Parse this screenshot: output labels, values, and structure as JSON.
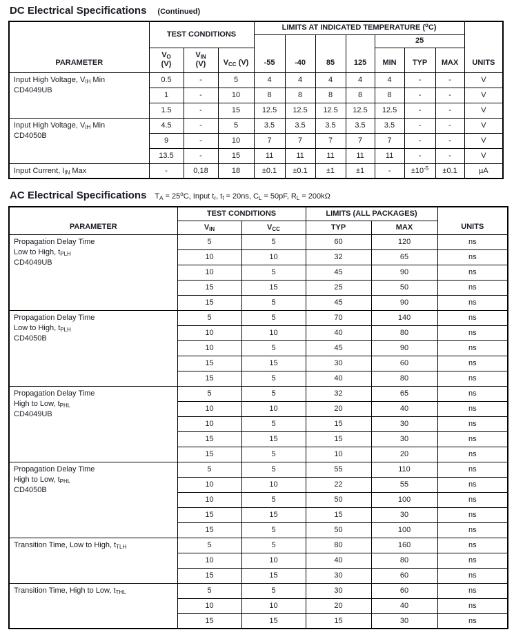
{
  "dc": {
    "title": "DC Electrical Specifications",
    "continued": "(Continued)",
    "header": {
      "parameter": "PARAMETER",
      "test_conditions": "TEST CONDITIONS",
      "limits": "LIMITS AT INDICATED TEMPERATURE (^o^C)",
      "temp25": "25",
      "vo": "V~O~\n(V)",
      "vin": "V~IN~\n(V)",
      "vcc": "V~CC~ (V)",
      "temps": [
        "-55",
        "-40",
        "85",
        "125"
      ],
      "min": "MIN",
      "typ": "TYP",
      "max": "MAX",
      "units": "UNITS"
    },
    "groups": [
      {
        "param": [
          "Input High Voltage, V~IH~ Min",
          "CD4049UB"
        ],
        "rows": [
          [
            "0.5",
            "-",
            "5",
            "4",
            "4",
            "4",
            "4",
            "4",
            "-",
            "-",
            "V"
          ],
          [
            "1",
            "-",
            "10",
            "8",
            "8",
            "8",
            "8",
            "8",
            "-",
            "-",
            "V"
          ],
          [
            "1.5",
            "-",
            "15",
            "12.5",
            "12.5",
            "12.5",
            "12.5",
            "12.5",
            "-",
            "-",
            "V"
          ]
        ]
      },
      {
        "param": [
          "Input High Voltage, V~IH~ Min",
          "CD4050B"
        ],
        "rows": [
          [
            "4.5",
            "-",
            "5",
            "3.5",
            "3.5",
            "3.5",
            "3.5",
            "3.5",
            "-",
            "-",
            "V"
          ],
          [
            "9",
            "-",
            "10",
            "7",
            "7",
            "7",
            "7",
            "7",
            "-",
            "-",
            "V"
          ],
          [
            "13.5",
            "-",
            "15",
            "11",
            "11",
            "11",
            "11",
            "11",
            "-",
            "-",
            "V"
          ]
        ]
      },
      {
        "param": [
          "Input Current, I~IN~ Max"
        ],
        "rows": [
          [
            "-",
            "0,18",
            "18",
            "±0.1",
            "±0.1",
            "±1",
            "±1",
            "-",
            "±10^-5^",
            "±0.1",
            "µA"
          ]
        ]
      }
    ]
  },
  "ac": {
    "title": "AC Electrical Specifications",
    "conditions": "T~A~ = 25^o^C, Input t~r~, t~f~ = 20ns, C~L~ = 50pF, R~L~ = 200kΩ",
    "header": {
      "parameter": "PARAMETER",
      "test_conditions": "TEST CONDITIONS",
      "limits": "LIMITS (ALL PACKAGES)",
      "vin": "V~IN~",
      "vcc": "V~CC~",
      "typ": "TYP",
      "max": "MAX",
      "units": "UNITS"
    },
    "groups": [
      {
        "param": [
          "Propagation Delay Time",
          "Low to High, t~PLH~",
          "CD4049UB"
        ],
        "rows": [
          [
            "5",
            "5",
            "60",
            "120",
            "ns"
          ],
          [
            "10",
            "10",
            "32",
            "65",
            "ns"
          ],
          [
            "10",
            "5",
            "45",
            "90",
            "ns"
          ],
          [
            "15",
            "15",
            "25",
            "50",
            "ns"
          ],
          [
            "15",
            "5",
            "45",
            "90",
            "ns"
          ]
        ]
      },
      {
        "param": [
          "Propagation Delay Time",
          "Low to High, t~PLH~",
          "CD4050B"
        ],
        "rows": [
          [
            "5",
            "5",
            "70",
            "140",
            "ns"
          ],
          [
            "10",
            "10",
            "40",
            "80",
            "ns"
          ],
          [
            "10",
            "5",
            "45",
            "90",
            "ns"
          ],
          [
            "15",
            "15",
            "30",
            "60",
            "ns"
          ],
          [
            "15",
            "5",
            "40",
            "80",
            "ns"
          ]
        ]
      },
      {
        "param": [
          "Propagation Delay Time",
          "High to Low, t~PHL~",
          "CD4049UB"
        ],
        "rows": [
          [
            "5",
            "5",
            "32",
            "65",
            "ns"
          ],
          [
            "10",
            "10",
            "20",
            "40",
            "ns"
          ],
          [
            "10",
            "5",
            "15",
            "30",
            "ns"
          ],
          [
            "15",
            "15",
            "15",
            "30",
            "ns"
          ],
          [
            "15",
            "5",
            "10",
            "20",
            "ns"
          ]
        ]
      },
      {
        "param": [
          "Propagation Delay Time",
          "High to Low, t~PHL~",
          "CD4050B"
        ],
        "rows": [
          [
            "5",
            "5",
            "55",
            "110",
            "ns"
          ],
          [
            "10",
            "10",
            "22",
            "55",
            "ns"
          ],
          [
            "10",
            "5",
            "50",
            "100",
            "ns"
          ],
          [
            "15",
            "15",
            "15",
            "30",
            "ns"
          ],
          [
            "15",
            "5",
            "50",
            "100",
            "ns"
          ]
        ]
      },
      {
        "param": [
          "Transition Time, Low to High, t~TLH~"
        ],
        "rows": [
          [
            "5",
            "5",
            "80",
            "160",
            "ns"
          ],
          [
            "10",
            "10",
            "40",
            "80",
            "ns"
          ],
          [
            "15",
            "15",
            "30",
            "60",
            "ns"
          ]
        ]
      },
      {
        "param": [
          "Transition Time, High to Low, t~THL~"
        ],
        "rows": [
          [
            "5",
            "5",
            "30",
            "60",
            "ns"
          ],
          [
            "10",
            "10",
            "20",
            "40",
            "ns"
          ],
          [
            "15",
            "15",
            "15",
            "30",
            "ns"
          ]
        ]
      }
    ]
  }
}
